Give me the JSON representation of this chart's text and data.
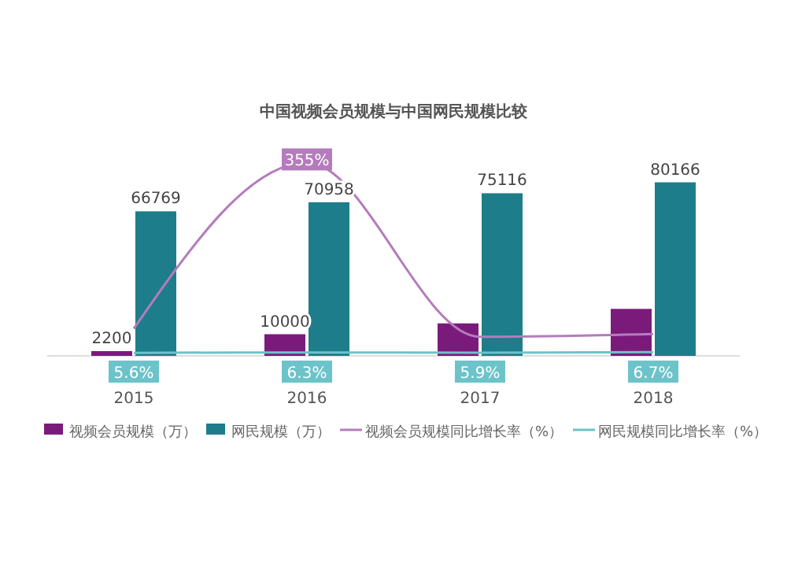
{
  "chart_data": {
    "type": "bar",
    "title": "中国视频会员规模与中国网民规模比较",
    "categories": [
      "2015",
      "2016",
      "2017",
      "2018"
    ],
    "tick_labels": "x",
    "legend": "bottom",
    "series": [
      {
        "name": "视频会员规模（万）",
        "color": "#7a1b7c",
        "values": [
          2200,
          10000,
          15000,
          21700
        ],
        "value_labels": [
          "2200",
          "10000",
          null,
          null
        ]
      },
      {
        "name": "网民规模（万）",
        "color": "#1e7d8a",
        "values": [
          66769,
          70958,
          75116,
          80166
        ],
        "value_labels": [
          "66769",
          "70958",
          "75116",
          "80166"
        ]
      },
      {
        "name": "视频会员规模同比增长率（%）",
        "type": "line",
        "axis": "y2",
        "color": "#b47cbc",
        "values": [
          50,
          355,
          35,
          40
        ],
        "value_labels": [
          null,
          "355%",
          null,
          null
        ]
      },
      {
        "name": "网民规模同比增长率（%）",
        "type": "line",
        "axis": "y2",
        "color": "#6cc3c9",
        "values": [
          5.6,
          6.3,
          5.9,
          6.7
        ],
        "value_labels": [
          "5.6%",
          "6.3%",
          "5.9%",
          "6.7%"
        ]
      }
    ]
  }
}
